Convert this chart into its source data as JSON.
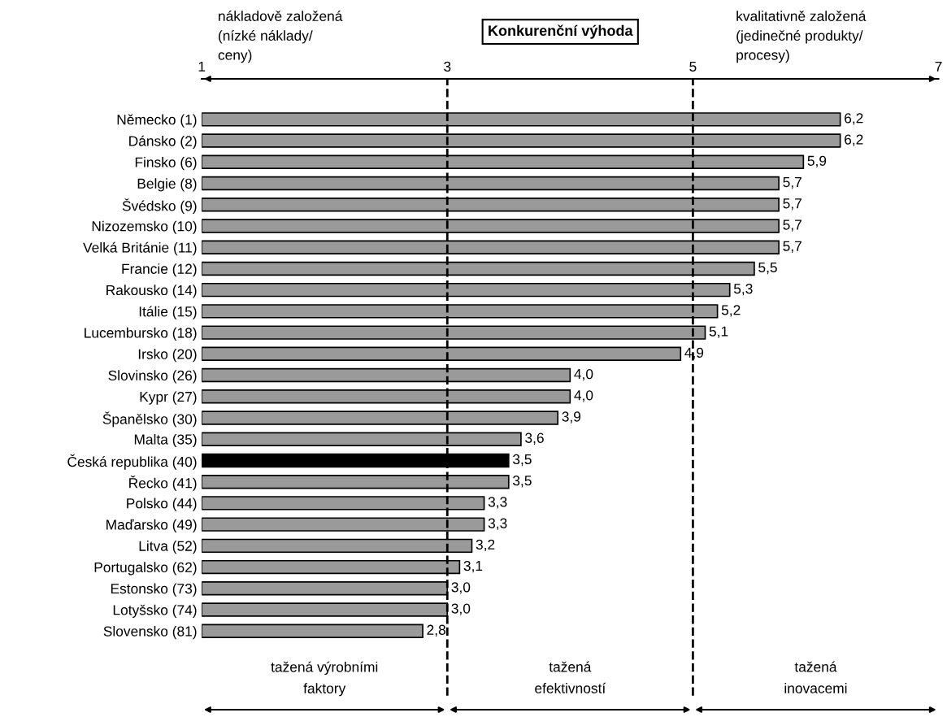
{
  "chart_data": {
    "type": "bar",
    "orientation": "horizontal",
    "title": "Konkurenční výhoda",
    "categories": [
      "Německo (1)",
      "Dánsko (2)",
      "Finsko (6)",
      "Belgie (8)",
      "Švédsko (9)",
      "Nizozemsko (10)",
      "Velká Británie (11)",
      "Francie (12)",
      "Rakousko (14)",
      "Itálie (15)",
      "Lucembursko (18)",
      "Irsko (20)",
      "Slovinsko (26)",
      "Kypr (27)",
      "Španělsko (30)",
      "Malta (35)",
      "Česká republika (40)",
      "Řecko (41)",
      "Polsko (44)",
      "Maďarsko (49)",
      "Litva (52)",
      "Portugalsko (62)",
      "Estonsko (73)",
      "Lotyšsko (74)",
      "Slovensko (81)"
    ],
    "values": [
      6.2,
      6.2,
      5.9,
      5.7,
      5.7,
      5.7,
      5.7,
      5.5,
      5.3,
      5.2,
      5.1,
      4.9,
      4.0,
      4.0,
      3.9,
      3.6,
      3.5,
      3.5,
      3.3,
      3.3,
      3.2,
      3.1,
      3.0,
      3.0,
      2.8
    ],
    "value_labels": [
      "6,2",
      "6,2",
      "5,9",
      "5,7",
      "5,7",
      "5,7",
      "5,7",
      "5,5",
      "5,3",
      "5,2",
      "5,1",
      "4,9",
      "4,0",
      "4,0",
      "3,9",
      "3,6",
      "3,5",
      "3,5",
      "3,3",
      "3,3",
      "3,2",
      "3,1",
      "3,0",
      "3,0",
      "2,8"
    ],
    "colors": [
      "#9a9a9a",
      "#9a9a9a",
      "#9a9a9a",
      "#9a9a9a",
      "#9a9a9a",
      "#9a9a9a",
      "#9a9a9a",
      "#9a9a9a",
      "#9a9a9a",
      "#9a9a9a",
      "#9a9a9a",
      "#9a9a9a",
      "#9a9a9a",
      "#9a9a9a",
      "#9a9a9a",
      "#9a9a9a",
      "#000000",
      "#9a9a9a",
      "#9a9a9a",
      "#9a9a9a",
      "#9a9a9a",
      "#9a9a9a",
      "#9a9a9a",
      "#9a9a9a",
      "#9a9a9a"
    ],
    "xlim": [
      1,
      7
    ],
    "xticks": [
      1,
      3,
      5,
      7
    ],
    "ref_lines": [
      {
        "axis": "x",
        "value": 3,
        "line_style": "dashed",
        "color": "#000000"
      },
      {
        "axis": "x",
        "value": 5,
        "line_style": "dashed",
        "color": "#000000"
      }
    ],
    "annotations": [
      "nákladově založená\n(nízké náklady/\nceny)",
      "kvalitativně založená\n(jedinečné produkty/\nprocesy)",
      "tažená výrobními\nfaktory",
      "tažená\nefektivností",
      "tažená\ninovacemi"
    ],
    "grid": false,
    "legend": false
  }
}
